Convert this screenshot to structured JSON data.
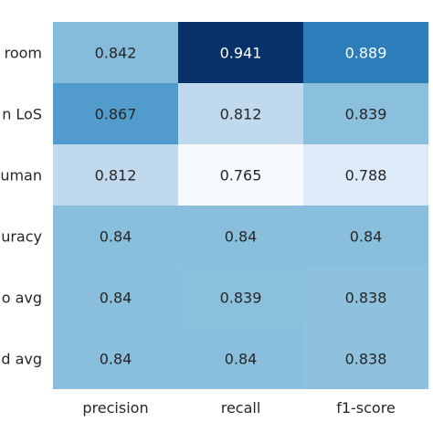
{
  "chart_data": {
    "type": "heatmap",
    "title": "",
    "xlabel": "",
    "ylabel": "",
    "colormap": "Blues",
    "columns": [
      "precision",
      "recall",
      "f1-score"
    ],
    "rows": [
      "room",
      "n LoS",
      "uman",
      "uracy",
      "o avg",
      "d avg"
    ],
    "values": [
      [
        0.842,
        0.941,
        0.889
      ],
      [
        0.867,
        0.812,
        0.839
      ],
      [
        0.812,
        0.765,
        0.788
      ],
      [
        0.84,
        0.84,
        0.84
      ],
      [
        0.84,
        0.839,
        0.838
      ],
      [
        0.84,
        0.84,
        0.838
      ]
    ],
    "labels": [
      [
        "0.842",
        "0.941",
        "0.889"
      ],
      [
        "0.867",
        "0.812",
        "0.839"
      ],
      [
        "0.812",
        "0.765",
        "0.788"
      ],
      [
        "0.84",
        "0.84",
        "0.84"
      ],
      [
        "0.84",
        "0.839",
        "0.838"
      ],
      [
        "0.84",
        "0.84",
        "0.838"
      ]
    ],
    "color_range": [
      0.765,
      0.941
    ]
  }
}
